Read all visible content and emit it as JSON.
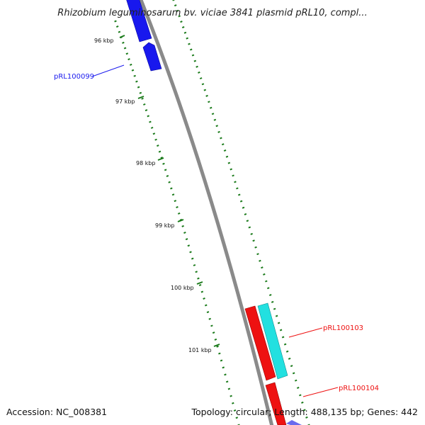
{
  "header": {
    "title": "Rhizobium leguminosarum bv. viciae 3841 plasmid pRL10, compl..."
  },
  "ruler": {
    "tick_labels": [
      "96 kbp",
      "97 kbp",
      "98 kbp",
      "99 kbp",
      "100 kbp",
      "101 kbp"
    ],
    "tick_color": "#1a7a1a"
  },
  "genes": [
    {
      "name": "pRL100099",
      "color": "#1a1aee",
      "strand": "forward"
    },
    {
      "name": "pRL100103",
      "color": "#ee1111",
      "strand": "forward"
    },
    {
      "name": "pRL100104",
      "color": "#ee1111",
      "strand": "forward"
    }
  ],
  "features": [
    {
      "type": "orf",
      "color": "#22e0e0"
    }
  ],
  "footer": {
    "accession": "Accession: NC_008381",
    "summary": "Topology: circular; Length: 488,135 bp; Genes: 442"
  }
}
